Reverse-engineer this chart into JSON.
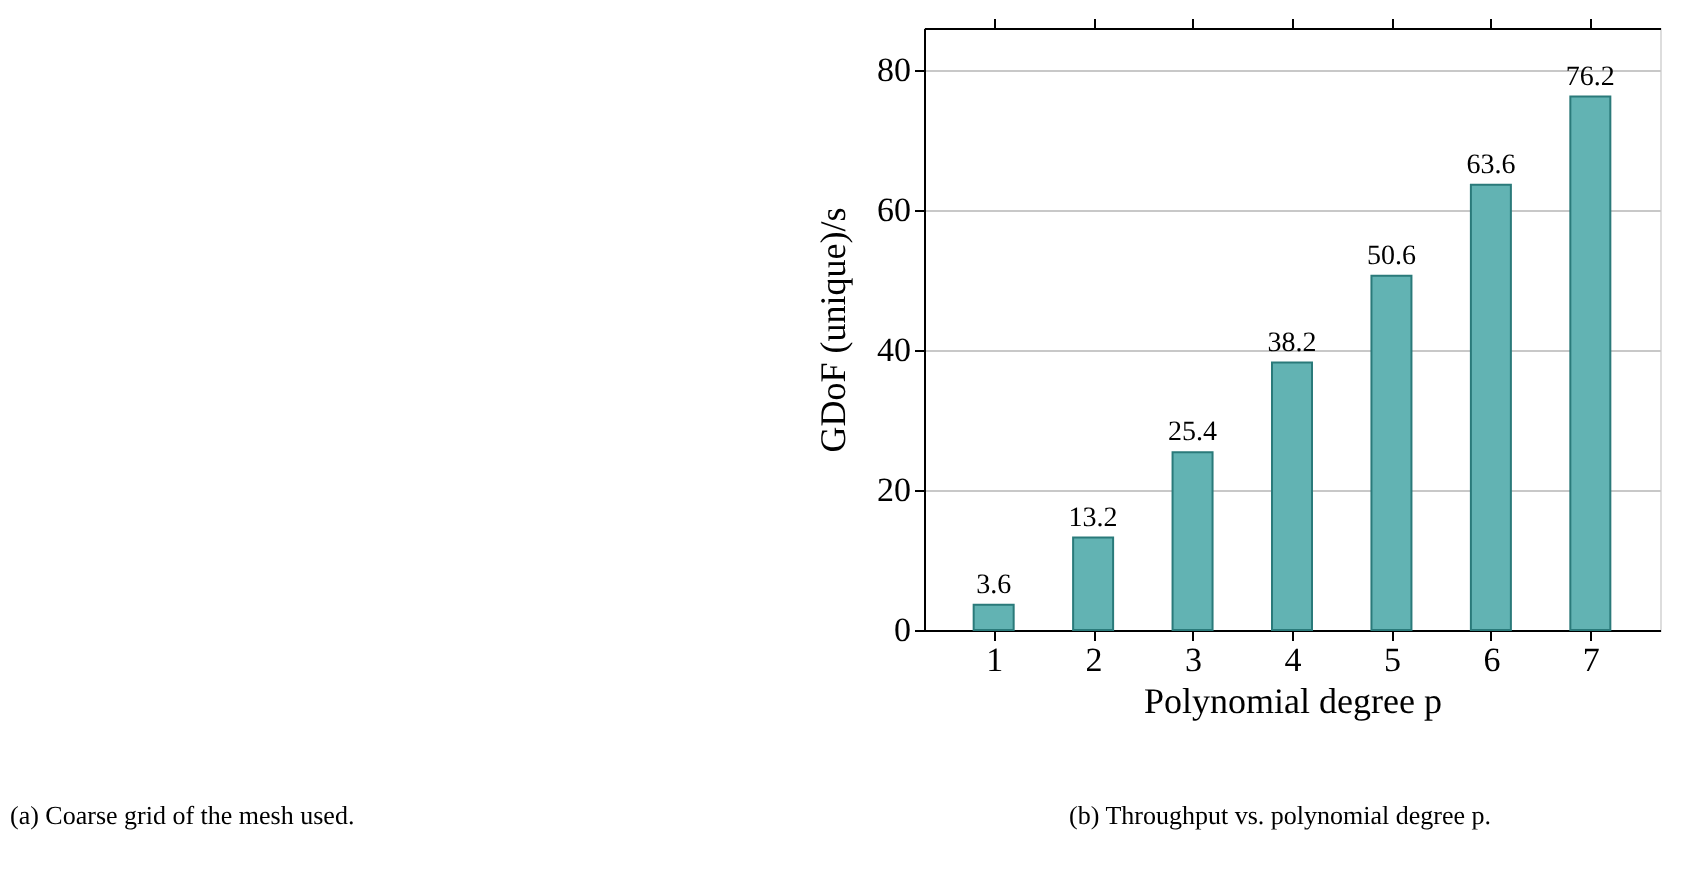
{
  "chart_data": {
    "type": "bar",
    "xlabel": "Polynomial degree p",
    "ylabel": "GDoF (unique)/s",
    "categories": [
      "1",
      "2",
      "3",
      "4",
      "5",
      "6",
      "7"
    ],
    "values": [
      3.6,
      13.2,
      25.4,
      38.2,
      50.6,
      63.6,
      76.2
    ],
    "color": "#62b3b3",
    "ylim": [
      0,
      86
    ],
    "yticks": [
      0,
      20,
      40,
      60,
      80
    ],
    "grid": "y",
    "data_labels": true,
    "annotations": [
      "(a) Coarse grid of the mesh used.",
      "(b) Throughput vs. polynomial degree p."
    ]
  }
}
